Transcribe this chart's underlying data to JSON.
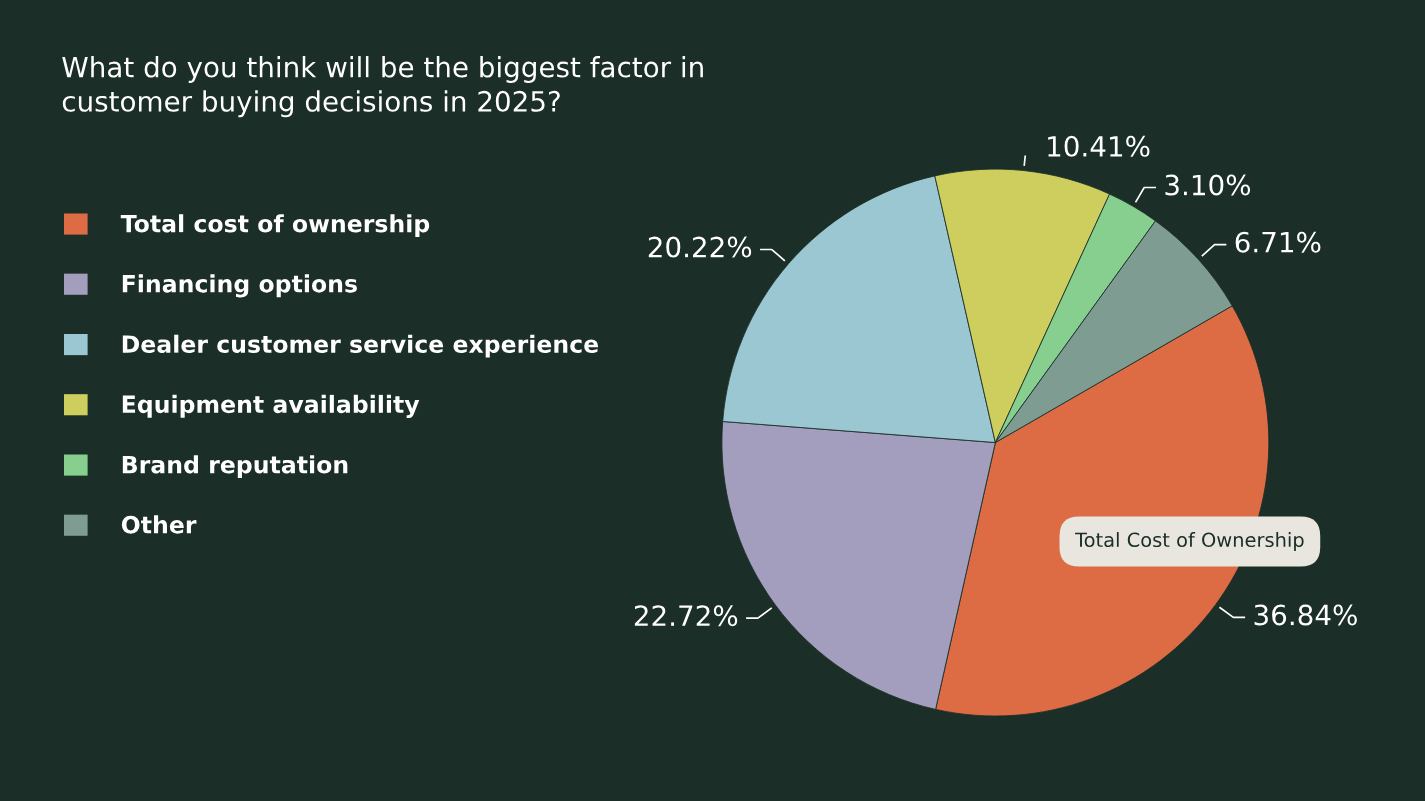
{
  "chart_data": {
    "type": "pie",
    "title": "What do you think will be the biggest factor in\ncustomer buying decisions in 2025?",
    "categories": [
      "Total cost of ownership",
      "Financing options",
      "Dealer customer service experience",
      "Equipment availability",
      "Brand reputation",
      "Other"
    ],
    "values": [
      36.84,
      22.72,
      20.22,
      10.41,
      3.1,
      6.71
    ],
    "value_labels": [
      "36.84%",
      "22.72%",
      "20.22%",
      "10.41%",
      "3.10%",
      "6.71%"
    ],
    "colors": [
      "#dd6b44",
      "#a39ebd",
      "#9ac7d2",
      "#cdce5e",
      "#86cf8f",
      "#7f9c92"
    ],
    "legend": "left",
    "annotations": [
      "Total Cost of Ownership"
    ]
  }
}
